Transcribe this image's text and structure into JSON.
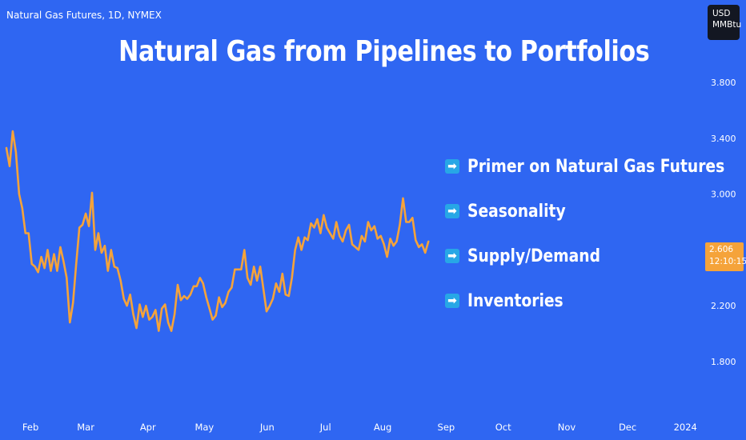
{
  "symbol_label": "Natural Gas Futures, 1D, NYMEX",
  "title": "Natural Gas from Pipelines to Portfolios",
  "currency": {
    "line1": "USD",
    "line2": "MMBtu"
  },
  "bullets": [
    {
      "icon": "arrow-right-icon",
      "label": "Primer on Natural Gas Futures"
    },
    {
      "icon": "arrow-right-icon",
      "label": "Seasonality"
    },
    {
      "icon": "arrow-right-icon",
      "label": "Supply/Demand"
    },
    {
      "icon": "arrow-right-icon",
      "label": "Inventories"
    }
  ],
  "last_price": {
    "price": "2.606",
    "countdown": "12:10:15"
  },
  "colors": {
    "background": "#2f66f2",
    "line": "#f5a33a",
    "bullet_icon": "#27a7e6",
    "currency_box": "#131722"
  },
  "chart_data": {
    "type": "line",
    "title": "Natural Gas from Pipelines to Portfolios",
    "xlabel": "",
    "ylabel": "",
    "x_range": [
      0,
      11
    ],
    "ylim": [
      1.5,
      4.05
    ],
    "y_ticks": [
      1.8,
      2.2,
      3.0,
      3.4,
      3.8
    ],
    "y_tick_labels": [
      "1.800",
      "2.200",
      "3.000",
      "3.400",
      "3.800"
    ],
    "x_ticks": [
      {
        "label": "Feb",
        "x": 0.38
      },
      {
        "label": "Mar",
        "x": 1.25
      },
      {
        "label": "Apr",
        "x": 2.23
      },
      {
        "label": "May",
        "x": 3.12
      },
      {
        "label": "Jun",
        "x": 4.11
      },
      {
        "label": "Jul",
        "x": 5.03
      },
      {
        "label": "Aug",
        "x": 5.93
      },
      {
        "label": "Sep",
        "x": 6.93
      },
      {
        "label": "Oct",
        "x": 7.83
      },
      {
        "label": "Nov",
        "x": 8.83
      },
      {
        "label": "Dec",
        "x": 9.79
      },
      {
        "label": "2024",
        "x": 10.7
      }
    ],
    "grid": false,
    "series": [
      {
        "values": [
          [
            0.0,
            3.33
          ],
          [
            0.05,
            3.2
          ],
          [
            0.1,
            3.45
          ],
          [
            0.15,
            3.3
          ],
          [
            0.2,
            3.0
          ],
          [
            0.25,
            2.9
          ],
          [
            0.3,
            2.72
          ],
          [
            0.35,
            2.72
          ],
          [
            0.4,
            2.5
          ],
          [
            0.45,
            2.48
          ],
          [
            0.5,
            2.44
          ],
          [
            0.55,
            2.55
          ],
          [
            0.6,
            2.47
          ],
          [
            0.65,
            2.6
          ],
          [
            0.7,
            2.45
          ],
          [
            0.75,
            2.57
          ],
          [
            0.8,
            2.45
          ],
          [
            0.85,
            2.62
          ],
          [
            0.9,
            2.52
          ],
          [
            0.95,
            2.4
          ],
          [
            1.0,
            2.08
          ],
          [
            1.05,
            2.22
          ],
          [
            1.1,
            2.5
          ],
          [
            1.15,
            2.76
          ],
          [
            1.2,
            2.78
          ],
          [
            1.25,
            2.86
          ],
          [
            1.3,
            2.77
          ],
          [
            1.35,
            3.01
          ],
          [
            1.4,
            2.6
          ],
          [
            1.45,
            2.72
          ],
          [
            1.5,
            2.58
          ],
          [
            1.55,
            2.63
          ],
          [
            1.6,
            2.45
          ],
          [
            1.65,
            2.6
          ],
          [
            1.7,
            2.48
          ],
          [
            1.75,
            2.47
          ],
          [
            1.8,
            2.38
          ],
          [
            1.85,
            2.25
          ],
          [
            1.9,
            2.2
          ],
          [
            1.95,
            2.28
          ],
          [
            2.0,
            2.14
          ],
          [
            2.05,
            2.04
          ],
          [
            2.1,
            2.21
          ],
          [
            2.15,
            2.12
          ],
          [
            2.2,
            2.2
          ],
          [
            2.25,
            2.1
          ],
          [
            2.3,
            2.12
          ],
          [
            2.35,
            2.17
          ],
          [
            2.4,
            2.02
          ],
          [
            2.45,
            2.18
          ],
          [
            2.5,
            2.21
          ],
          [
            2.55,
            2.08
          ],
          [
            2.6,
            2.02
          ],
          [
            2.65,
            2.14
          ],
          [
            2.7,
            2.35
          ],
          [
            2.75,
            2.24
          ],
          [
            2.8,
            2.27
          ],
          [
            2.85,
            2.25
          ],
          [
            2.9,
            2.28
          ],
          [
            2.95,
            2.34
          ],
          [
            3.0,
            2.34
          ],
          [
            3.05,
            2.4
          ],
          [
            3.1,
            2.36
          ],
          [
            3.15,
            2.26
          ],
          [
            3.2,
            2.18
          ],
          [
            3.25,
            2.1
          ],
          [
            3.3,
            2.13
          ],
          [
            3.35,
            2.26
          ],
          [
            3.4,
            2.19
          ],
          [
            3.45,
            2.22
          ],
          [
            3.5,
            2.3
          ],
          [
            3.55,
            2.33
          ],
          [
            3.6,
            2.46
          ],
          [
            3.65,
            2.46
          ],
          [
            3.7,
            2.46
          ],
          [
            3.75,
            2.6
          ],
          [
            3.8,
            2.4
          ],
          [
            3.85,
            2.35
          ],
          [
            3.9,
            2.48
          ],
          [
            3.95,
            2.38
          ],
          [
            4.0,
            2.48
          ],
          [
            4.05,
            2.32
          ],
          [
            4.1,
            2.16
          ],
          [
            4.15,
            2.2
          ],
          [
            4.2,
            2.25
          ],
          [
            4.25,
            2.36
          ],
          [
            4.3,
            2.3
          ],
          [
            4.35,
            2.43
          ],
          [
            4.4,
            2.28
          ],
          [
            4.45,
            2.27
          ],
          [
            4.5,
            2.4
          ],
          [
            4.55,
            2.6
          ],
          [
            4.6,
            2.69
          ],
          [
            4.65,
            2.6
          ],
          [
            4.7,
            2.69
          ],
          [
            4.75,
            2.67
          ],
          [
            4.8,
            2.79
          ],
          [
            4.85,
            2.76
          ],
          [
            4.9,
            2.82
          ],
          [
            4.95,
            2.72
          ],
          [
            5.0,
            2.85
          ],
          [
            5.05,
            2.76
          ],
          [
            5.1,
            2.72
          ],
          [
            5.15,
            2.68
          ],
          [
            5.2,
            2.8
          ],
          [
            5.25,
            2.7
          ],
          [
            5.3,
            2.66
          ],
          [
            5.35,
            2.74
          ],
          [
            5.4,
            2.78
          ],
          [
            5.45,
            2.64
          ],
          [
            5.5,
            2.62
          ],
          [
            5.55,
            2.6
          ],
          [
            5.6,
            2.7
          ],
          [
            5.65,
            2.66
          ],
          [
            5.7,
            2.8
          ],
          [
            5.75,
            2.74
          ],
          [
            5.8,
            2.77
          ],
          [
            5.85,
            2.68
          ],
          [
            5.9,
            2.7
          ],
          [
            5.95,
            2.64
          ],
          [
            6.0,
            2.55
          ],
          [
            6.05,
            2.68
          ],
          [
            6.1,
            2.63
          ],
          [
            6.15,
            2.66
          ],
          [
            6.2,
            2.78
          ],
          [
            6.25,
            2.97
          ],
          [
            6.3,
            2.8
          ],
          [
            6.35,
            2.8
          ],
          [
            6.4,
            2.83
          ],
          [
            6.45,
            2.67
          ],
          [
            6.5,
            2.62
          ],
          [
            6.55,
            2.64
          ],
          [
            6.6,
            2.58
          ],
          [
            6.65,
            2.66
          ]
        ]
      }
    ]
  }
}
